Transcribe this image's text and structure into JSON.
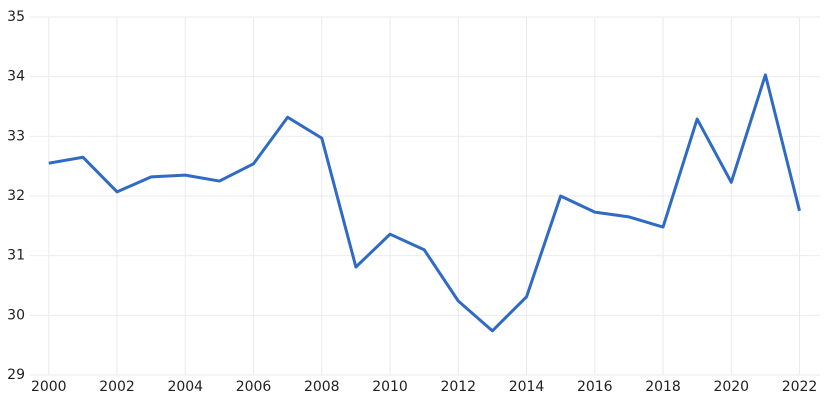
{
  "chart_data": {
    "type": "line",
    "x": [
      2000,
      2001,
      2002,
      2003,
      2004,
      2005,
      2006,
      2007,
      2008,
      2009,
      2010,
      2011,
      2012,
      2013,
      2014,
      2015,
      2016,
      2017,
      2018,
      2019,
      2020,
      2021,
      2022
    ],
    "series": [
      {
        "color": "#2f6bc4",
        "values": [
          32.55,
          32.65,
          32.07,
          32.32,
          32.35,
          32.25,
          32.54,
          33.32,
          32.97,
          30.81,
          31.36,
          31.1,
          30.24,
          29.74,
          30.31,
          32.0,
          31.73,
          31.65,
          31.48,
          33.29,
          32.23,
          34.03,
          31.75
        ]
      }
    ],
    "xlim": [
      1999.45,
      2022.6
    ],
    "xticks": [
      2000,
      2002,
      2004,
      2006,
      2008,
      2010,
      2012,
      2014,
      2016,
      2018,
      2020,
      2022
    ],
    "ylim": [
      29,
      35
    ],
    "yticks": [
      29,
      30,
      31,
      32,
      33,
      34,
      35
    ],
    "grid": true
  }
}
